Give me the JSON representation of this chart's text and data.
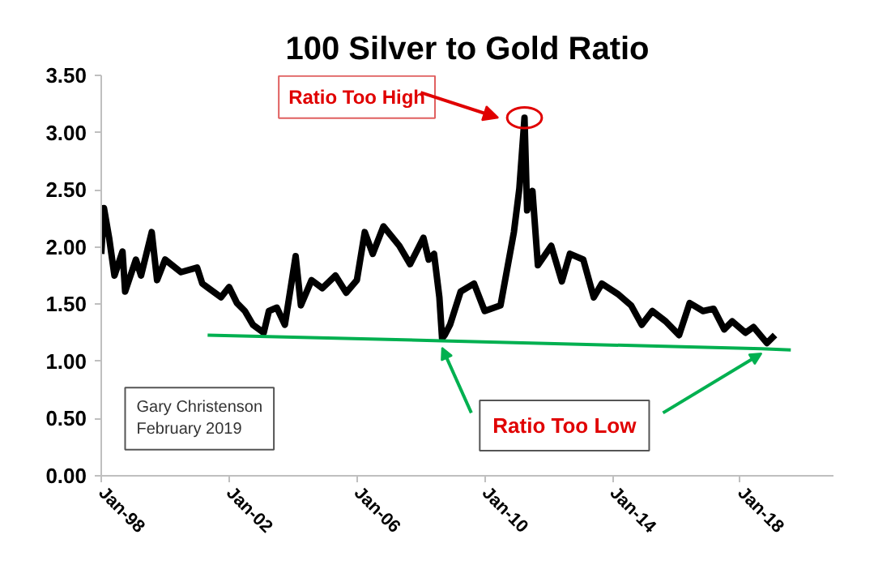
{
  "chart_data": {
    "type": "line",
    "title": "100 Silver to Gold Ratio",
    "xlim": [
      "1998-01",
      "2020-12"
    ],
    "xticks": [
      {
        "value": "1998-01",
        "label": "Jan-98"
      },
      {
        "value": "2002-01",
        "label": "Jan-02"
      },
      {
        "value": "2006-01",
        "label": "Jan-06"
      },
      {
        "value": "2010-01",
        "label": "Jan-10"
      },
      {
        "value": "2014-01",
        "label": "Jan-14"
      },
      {
        "value": "2018-01",
        "label": "Jan-18"
      }
    ],
    "ylim": [
      0,
      3.5
    ],
    "yticks": [
      {
        "value": 0,
        "label": "0.00"
      },
      {
        "value": 0.5,
        "label": "0.50"
      },
      {
        "value": 1,
        "label": "1.00"
      },
      {
        "value": 1.5,
        "label": "1.50"
      },
      {
        "value": 2,
        "label": "2.00"
      },
      {
        "value": 2.5,
        "label": "2.50"
      },
      {
        "value": 3,
        "label": "3.00"
      },
      {
        "value": 3.5,
        "label": "3.50"
      }
    ],
    "grid": false,
    "marker": "none",
    "line_style": "solid",
    "series": [
      {
        "color": "#000000",
        "x": [
          "1998-01",
          "1998-02",
          "1998-04",
          "1998-06",
          "1998-09",
          "1998-10",
          "1999-02",
          "1999-04",
          "1999-08",
          "1999-10",
          "2000-01",
          "2000-07",
          "2001-01",
          "2001-03",
          "2001-10",
          "2002-01",
          "2002-04",
          "2002-07",
          "2002-10",
          "2003-02",
          "2003-04",
          "2003-07",
          "2003-10",
          "2004-02",
          "2004-04",
          "2004-08",
          "2004-12",
          "2005-05",
          "2005-09",
          "2006-01",
          "2006-04",
          "2006-07",
          "2006-11",
          "2007-05",
          "2007-09",
          "2008-02",
          "2008-04",
          "2008-06",
          "2008-08",
          "2008-09",
          "2008-10",
          "2008-12",
          "2009-04",
          "2009-09",
          "2010-01",
          "2010-07",
          "2010-12",
          "2011-02",
          "2011-04",
          "2011-05",
          "2011-07",
          "2011-09",
          "2012-02",
          "2012-06",
          "2012-09",
          "2013-02",
          "2013-06",
          "2013-09",
          "2014-03",
          "2014-08",
          "2014-12",
          "2015-04",
          "2015-09",
          "2016-02",
          "2016-06",
          "2016-11",
          "2017-03",
          "2017-07",
          "2017-10",
          "2018-03",
          "2018-06",
          "2018-11",
          "2019-02"
        ],
        "values": [
          1.94,
          2.34,
          2.08,
          1.75,
          1.96,
          1.61,
          1.89,
          1.75,
          2.13,
          1.71,
          1.89,
          1.78,
          1.82,
          1.68,
          1.56,
          1.65,
          1.51,
          1.44,
          1.32,
          1.25,
          1.44,
          1.47,
          1.32,
          1.92,
          1.49,
          1.71,
          1.64,
          1.75,
          1.6,
          1.71,
          2.13,
          1.94,
          2.18,
          2.01,
          1.85,
          2.08,
          1.89,
          1.94,
          1.56,
          1.2,
          1.23,
          1.32,
          1.61,
          1.68,
          1.44,
          1.49,
          2.13,
          2.51,
          3.13,
          2.32,
          2.49,
          1.84,
          2.01,
          1.7,
          1.94,
          1.89,
          1.56,
          1.68,
          1.59,
          1.49,
          1.32,
          1.44,
          1.35,
          1.23,
          1.51,
          1.44,
          1.46,
          1.28,
          1.35,
          1.25,
          1.3,
          1.16,
          1.23
        ]
      },
      {
        "type": "line",
        "color": "#00b050",
        "x": [
          "2001-05",
          "2008-09",
          "2018-09",
          "2019-08"
        ],
        "values": [
          1.23,
          1.18,
          1.11,
          1.1
        ]
      }
    ],
    "annotations": [
      "Ratio Too High",
      {
        "text": "Ratio Too Low",
        "x": "2008-09",
        "y": 1.12
      },
      "Gary Christenson\nFebruary 2019"
    ]
  }
}
